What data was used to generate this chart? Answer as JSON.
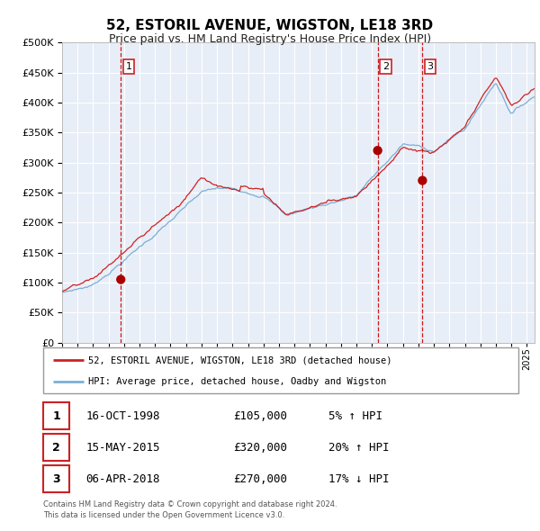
{
  "title": "52, ESTORIL AVENUE, WIGSTON, LE18 3RD",
  "subtitle": "Price paid vs. HM Land Registry's House Price Index (HPI)",
  "legend_line1": "52, ESTORIL AVENUE, WIGSTON, LE18 3RD (detached house)",
  "legend_line2": "HPI: Average price, detached house, Oadby and Wigston",
  "footer1": "Contains HM Land Registry data © Crown copyright and database right 2024.",
  "footer2": "This data is licensed under the Open Government Licence v3.0.",
  "transactions": [
    {
      "num": 1,
      "date": "16-OCT-1998",
      "price": 105000,
      "pct": "5%",
      "dir": "↑",
      "x_year": 1998.79
    },
    {
      "num": 2,
      "date": "15-MAY-2015",
      "price": 320000,
      "pct": "20%",
      "dir": "↑",
      "x_year": 2015.37
    },
    {
      "num": 3,
      "date": "06-APR-2018",
      "price": 270000,
      "pct": "17%",
      "dir": "↓",
      "x_year": 2018.26
    }
  ],
  "hpi_color": "#7BAFD4",
  "price_color": "#CC2222",
  "dot_color": "#AA0000",
  "bg_color": "#E8EEF7",
  "grid_color": "#FFFFFF",
  "ylim": [
    0,
    500000
  ],
  "xlim_start": 1995.0,
  "xlim_end": 2025.5,
  "yticks": [
    0,
    50000,
    100000,
    150000,
    200000,
    250000,
    300000,
    350000,
    400000,
    450000,
    500000
  ]
}
